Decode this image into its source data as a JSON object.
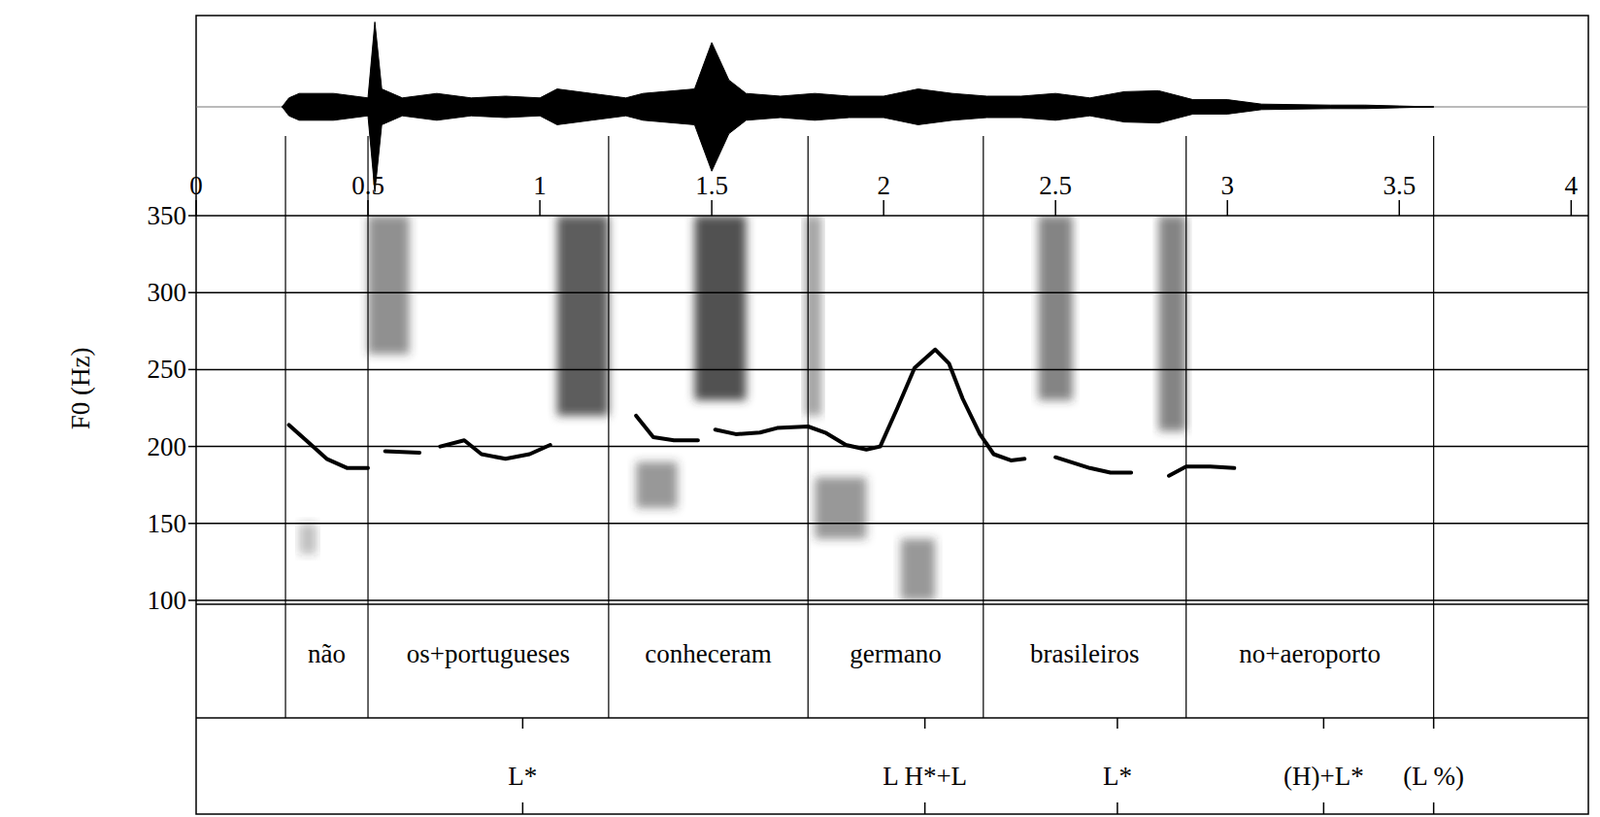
{
  "chart_data": {
    "type": "line",
    "y_label": "F0 (Hz)",
    "color": "#000000",
    "grid": true,
    "xlim": [
      0,
      4.05
    ],
    "xticks": [
      0,
      0.5,
      1,
      1.5,
      2,
      2.5,
      3,
      3.5,
      4
    ],
    "ylim": [
      100,
      350
    ],
    "yticks": [
      100,
      150,
      200,
      250,
      300,
      350
    ],
    "x": [
      0.27,
      0.32,
      0.38,
      0.44,
      0.5,
      0.52,
      0.55,
      0.65,
      0.68,
      0.71,
      0.78,
      0.83,
      0.9,
      0.97,
      1.03,
      1.15,
      1.28,
      1.33,
      1.39,
      1.46,
      1.48,
      1.51,
      1.57,
      1.64,
      1.69,
      1.78,
      1.83,
      1.89,
      1.95,
      1.99,
      2.04,
      2.09,
      2.15,
      2.19,
      2.23,
      2.28,
      2.32,
      2.37,
      2.41,
      2.45,
      2.5,
      2.6,
      2.66,
      2.72,
      2.78,
      2.83,
      2.88,
      2.95,
      3.02
    ],
    "values": [
      214,
      204,
      192,
      186,
      186,
      null,
      197,
      196,
      null,
      200,
      204,
      195,
      192,
      195,
      201,
      null,
      220,
      206,
      204,
      204,
      null,
      211,
      208,
      209,
      212,
      213,
      209,
      201,
      198,
      200,
      225,
      251,
      263,
      254,
      231,
      208,
      195,
      191,
      192,
      null,
      193,
      186,
      183,
      183,
      null,
      181,
      187,
      187,
      186
    ],
    "words": [
      {
        "start": 0.26,
        "end": 0.5,
        "label": "não"
      },
      {
        "start": 0.5,
        "end": 1.2,
        "label": "os+portugueses"
      },
      {
        "start": 1.2,
        "end": 1.78,
        "label": "conheceram"
      },
      {
        "start": 1.78,
        "end": 2.29,
        "label": "germano"
      },
      {
        "start": 2.29,
        "end": 2.88,
        "label": "brasileiros"
      },
      {
        "start": 2.88,
        "end": 3.6,
        "label": "no+aeroporto"
      }
    ],
    "tones": [
      {
        "time": 0.95,
        "label": "L*"
      },
      {
        "time": 2.12,
        "label": "L H*+L"
      },
      {
        "time": 2.68,
        "label": "L*"
      },
      {
        "time": 3.28,
        "label": "(H)+L*"
      },
      {
        "time": 3.6,
        "label": "(L %)"
      }
    ],
    "waveform": {
      "x": [
        0.25,
        0.27,
        0.3,
        0.4,
        0.5,
        0.52,
        0.54,
        0.6,
        0.7,
        0.8,
        0.9,
        1.0,
        1.05,
        1.15,
        1.25,
        1.3,
        1.45,
        1.5,
        1.55,
        1.6,
        1.7,
        1.8,
        1.9,
        2.0,
        2.1,
        2.2,
        2.3,
        2.4,
        2.5,
        2.6,
        2.7,
        2.8,
        2.9,
        3.0,
        3.1,
        3.3,
        3.4,
        3.5,
        3.6
      ],
      "amplitude": [
        0,
        0.1,
        0.15,
        0.15,
        0.1,
        0.95,
        0.2,
        0.1,
        0.15,
        0.1,
        0.12,
        0.1,
        0.2,
        0.15,
        0.1,
        0.15,
        0.2,
        0.72,
        0.3,
        0.15,
        0.12,
        0.15,
        0.12,
        0.12,
        0.2,
        0.15,
        0.12,
        0.12,
        0.15,
        0.1,
        0.17,
        0.18,
        0.08,
        0.08,
        0.03,
        0.02,
        0.02,
        0.01,
        0
      ]
    },
    "spectrogram_patches": [
      {
        "x0": 0.5,
        "x1": 0.62,
        "y0": 260,
        "y1": 350,
        "darkness": 0.55
      },
      {
        "x0": 1.05,
        "x1": 1.2,
        "y0": 220,
        "y1": 350,
        "darkness": 0.8
      },
      {
        "x0": 1.45,
        "x1": 1.6,
        "y0": 230,
        "y1": 350,
        "darkness": 0.85
      },
      {
        "x0": 1.77,
        "x1": 1.82,
        "y0": 220,
        "y1": 350,
        "darkness": 0.45
      },
      {
        "x0": 2.45,
        "x1": 2.55,
        "y0": 230,
        "y1": 350,
        "darkness": 0.6
      },
      {
        "x0": 2.8,
        "x1": 2.88,
        "y0": 210,
        "y1": 350,
        "darkness": 0.6
      },
      {
        "x0": 1.28,
        "x1": 1.4,
        "y0": 160,
        "y1": 190,
        "darkness": 0.5
      },
      {
        "x0": 1.8,
        "x1": 1.95,
        "y0": 140,
        "y1": 180,
        "darkness": 0.5
      },
      {
        "x0": 2.05,
        "x1": 2.15,
        "y0": 100,
        "y1": 140,
        "darkness": 0.5
      },
      {
        "x0": 0.3,
        "x1": 0.35,
        "y0": 130,
        "y1": 150,
        "darkness": 0.3
      }
    ]
  }
}
